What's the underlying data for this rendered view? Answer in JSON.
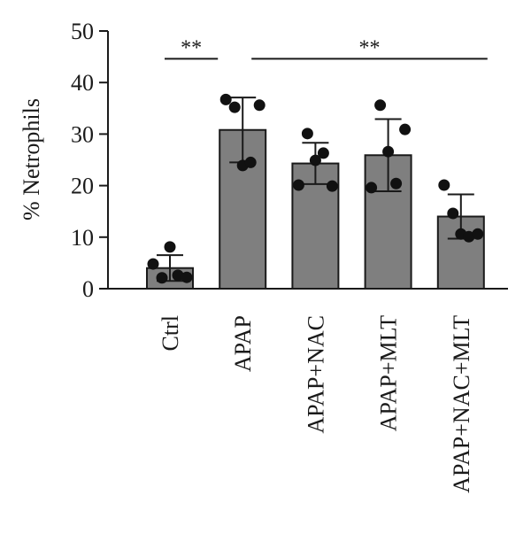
{
  "chart_data": {
    "type": "bar",
    "ylabel": "% Netrophils",
    "ylim": [
      0,
      50
    ],
    "yticks": [
      0,
      10,
      20,
      30,
      40,
      50
    ],
    "grid": false,
    "categories": [
      "Ctrl",
      "APAP",
      "APAP+NAC",
      "APAP+MLT",
      "APAP+NAC+MLT"
    ],
    "values": [
      4.0,
      30.8,
      24.3,
      25.9,
      14.0
    ],
    "error": [
      2.5,
      6.3,
      4.0,
      7.0,
      4.3
    ],
    "points": [
      [
        4.8,
        2.1,
        8.1,
        2.6,
        2.2
      ],
      [
        36.7,
        35.2,
        23.9,
        24.5,
        35.6
      ],
      [
        20.1,
        30.1,
        24.9,
        26.3,
        19.9
      ],
      [
        19.6,
        35.6,
        26.6,
        20.4,
        30.9
      ],
      [
        20.1,
        14.6,
        10.6,
        10.1,
        10.6
      ]
    ],
    "bar_color": "#7f7f7f",
    "significance": [
      {
        "from": 0,
        "to": 1,
        "label": "**",
        "y": 46.5
      },
      {
        "from": 1,
        "to": 4,
        "label": "**",
        "y": 46.5
      }
    ]
  }
}
